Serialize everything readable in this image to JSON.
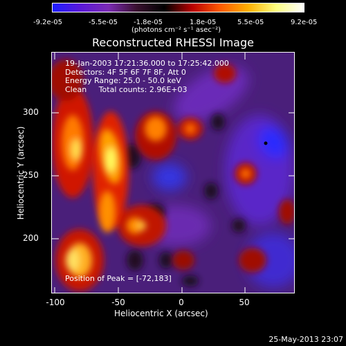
{
  "colorbar": {
    "ticks": [
      "-9.2e-05",
      "-5.5e-05",
      "-1.8e-05",
      "1.8e-05",
      "5.5e-05",
      "9.2e-05"
    ],
    "units": "(photons cm⁻² s⁻¹ asec⁻²)",
    "colors": [
      "#1d1dff",
      "#5a18d8",
      "#7b2bb5",
      "#3a1030",
      "#000000",
      "#b80000",
      "#ff5a00",
      "#ffb000",
      "#ffff80",
      "#ffffff"
    ]
  },
  "title": "Reconstructed RHESSI Image",
  "info_lines": [
    "19-Jan-2003 17:21:36.000 to 17:25:42.000",
    "Detectors: 4F 5F 6F 7F 8F, Att 0",
    "Energy Range: 25.0 - 50.0 keV",
    "Clean     Total counts: 2.96E+03"
  ],
  "peak_label": "Position of Peak = [-72,183]",
  "x_axis": {
    "label": "Heliocentric X (arcsec)",
    "ticks": [
      "-100",
      "-50",
      "0",
      "50"
    ]
  },
  "y_axis": {
    "label": "Heliocentric Y (arcsec)",
    "ticks": [
      "300",
      "250",
      "200"
    ]
  },
  "datestamp": "25-May-2013 23:07"
}
